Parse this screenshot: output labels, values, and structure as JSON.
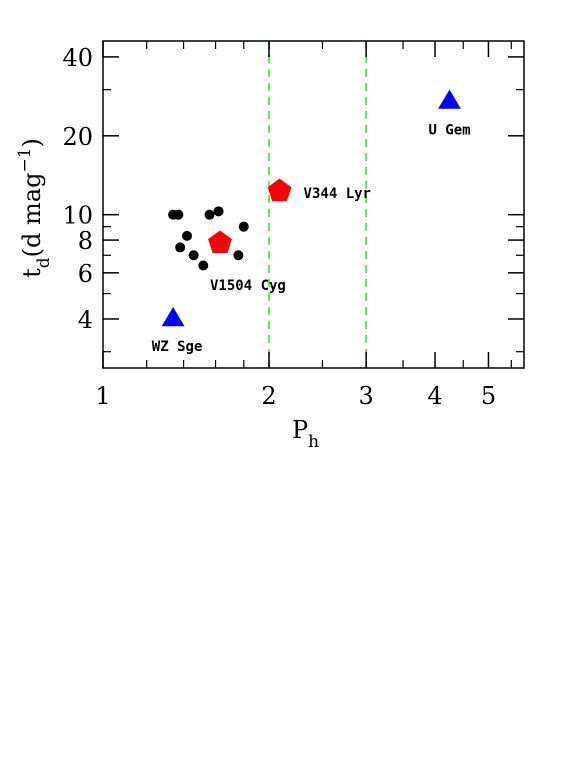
{
  "chart_data": {
    "type": "scatter",
    "x_scale": "log",
    "y_scale": "log",
    "xlim": [
      1,
      5.8
    ],
    "ylim": [
      2.6,
      46
    ],
    "x_ticks": [
      1,
      2,
      3,
      4,
      5
    ],
    "x_tick_labels": [
      "1",
      "2",
      "3",
      "4",
      "5"
    ],
    "y_ticks": [
      4,
      6,
      8,
      10,
      20,
      40
    ],
    "y_tick_labels": [
      "4",
      "6",
      "8",
      "10",
      "20",
      "40"
    ],
    "xlabel": {
      "main": "P",
      "sub": "h"
    },
    "ylabel": {
      "main": "t",
      "sub": "d",
      "rest": "(d mag",
      "sup": "−1",
      "close": ")"
    },
    "grid": false,
    "vlines": {
      "x": [
        2,
        3
      ],
      "color": "#44dd44",
      "style": "dashed"
    },
    "series": [
      {
        "marker": "circle",
        "color": "#000000",
        "points": [
          {
            "x": 1.34,
            "y": 10.0
          },
          {
            "x": 1.37,
            "y": 10.0
          },
          {
            "x": 1.38,
            "y": 7.5
          },
          {
            "x": 1.42,
            "y": 8.3
          },
          {
            "x": 1.46,
            "y": 7.0
          },
          {
            "x": 1.52,
            "y": 6.4
          },
          {
            "x": 1.56,
            "y": 10.0
          },
          {
            "x": 1.62,
            "y": 10.3
          },
          {
            "x": 1.76,
            "y": 7.0
          },
          {
            "x": 1.8,
            "y": 9.0
          }
        ]
      },
      {
        "marker": "pentagon",
        "color": "#ff0000",
        "points": [
          {
            "x": 1.63,
            "y": 7.8,
            "label": "V1504 Cyg"
          },
          {
            "x": 2.09,
            "y": 12.3,
            "label": "V344 Lyr"
          }
        ]
      },
      {
        "marker": "triangle",
        "color": "#0000ff",
        "points": [
          {
            "x": 1.34,
            "y": 4.0,
            "label": "WZ Sge"
          },
          {
            "x": 4.25,
            "y": 27.0,
            "label": "U Gem"
          }
        ]
      }
    ]
  }
}
